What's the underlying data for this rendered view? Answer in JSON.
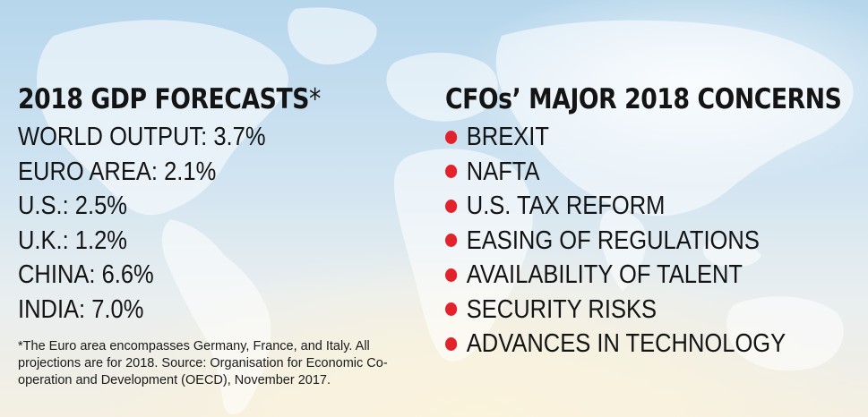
{
  "left": {
    "heading": "2018 GDP FORECASTS",
    "heading_mark": "*",
    "items": [
      "WORLD OUTPUT: 3.7%",
      "EURO AREA: 2.1%",
      "U.S.: 2.5%",
      "U.K.: 1.2%",
      "CHINA: 6.6%",
      "INDIA: 7.0%"
    ],
    "footnote": "*The Euro area encompasses Germany, France, and Italy. All projections are for 2018. Source: Organisation for Economic Co-operation and Development (OECD), November 2017."
  },
  "right": {
    "heading": "CFOs’ MAJOR 2018 CONCERNS",
    "items": [
      "BREXIT",
      "NAFTA",
      "U.S. TAX REFORM",
      "EASING OF REGULATIONS",
      "AVAILABILITY OF TALENT",
      "SECURITY RISKS",
      "ADVANCES IN TECHNOLOGY"
    ]
  },
  "colors": {
    "bullet": "#e3232c",
    "text": "#141414",
    "map_land": "#ffffff"
  },
  "background": {
    "icon": "world-map-icon"
  }
}
